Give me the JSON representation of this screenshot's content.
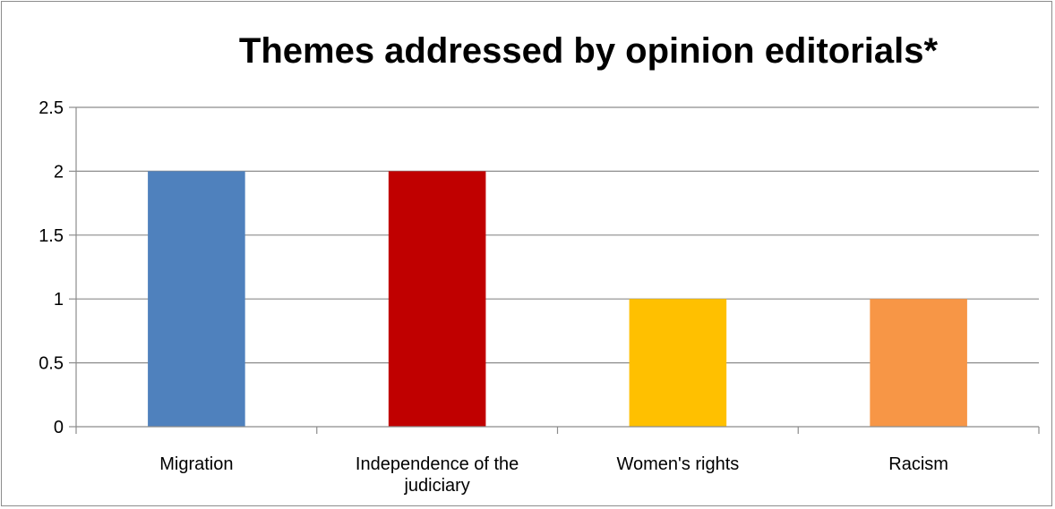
{
  "chart_data": {
    "type": "bar",
    "title": "Themes addressed by opinion editorials*",
    "categories": [
      [
        "Migration"
      ],
      [
        "Independence of the",
        "judiciary"
      ],
      [
        "Women's rights"
      ],
      [
        "Racism"
      ]
    ],
    "values": [
      2,
      2,
      1,
      1
    ],
    "colors": [
      "#4f81bd",
      "#c00000",
      "#ffc000",
      "#f79646"
    ],
    "yticks": [
      "0",
      "0.5",
      "1",
      "1.5",
      "2",
      "2.5"
    ],
    "ylim": [
      0,
      2.5
    ],
    "grid": true,
    "legend": "none"
  }
}
